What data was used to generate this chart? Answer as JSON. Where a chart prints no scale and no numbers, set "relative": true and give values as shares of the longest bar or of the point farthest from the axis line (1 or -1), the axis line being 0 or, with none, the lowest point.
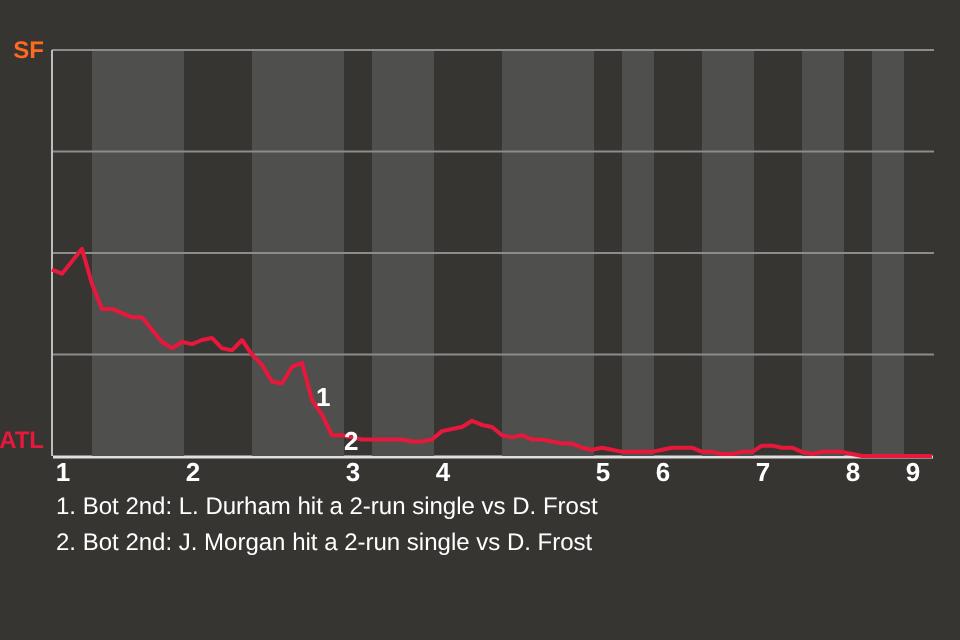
{
  "chart_data": {
    "type": "line",
    "categories": [
      null,
      "1",
      null,
      null,
      null,
      null,
      null,
      null,
      null,
      null,
      null,
      null,
      null,
      null,
      "2",
      null,
      null,
      null,
      null,
      null,
      null,
      null,
      null,
      null,
      null,
      null,
      null,
      null,
      null,
      null,
      "3",
      null,
      null,
      null,
      null,
      null,
      null,
      null,
      null,
      "4",
      null,
      null,
      null,
      null,
      null,
      null,
      null,
      null,
      null,
      null,
      null,
      null,
      null,
      null,
      null,
      "5",
      null,
      null,
      null,
      null,
      null,
      "6",
      null,
      null,
      null,
      null,
      null,
      null,
      null,
      null,
      null,
      "7",
      null,
      null,
      null,
      null,
      null,
      null,
      null,
      null,
      "8",
      null,
      null,
      null,
      null,
      null,
      "9",
      null,
      null
    ],
    "series": [
      {
        "color": "#e8183c",
        "values": [
          0.9,
          0.88,
          0.94,
          1,
          0.83,
          0.71,
          0.71,
          0.69,
          0.67,
          0.67,
          0.61,
          0.55,
          0.52,
          0.55,
          0.54,
          0.56,
          0.57,
          0.52,
          0.51,
          0.56,
          0.49,
          0.44,
          0.36,
          0.35,
          0.43,
          0.45,
          0.27,
          0.2,
          0.1,
          0.1,
          0.09,
          0.08,
          0.08,
          0.08,
          0.08,
          0.08,
          0.07,
          0.07,
          0.08,
          0.12,
          0.13,
          0.14,
          0.17,
          0.15,
          0.14,
          0.1,
          0.09,
          0.1,
          0.08,
          0.08,
          0.07,
          0.06,
          0.06,
          0.04,
          0.03,
          0.04,
          0.03,
          0.02,
          0.02,
          0.02,
          0.02,
          0.03,
          0.04,
          0.04,
          0.04,
          0.02,
          0.02,
          0.01,
          0.01,
          0.02,
          0.02,
          0.05,
          0.05,
          0.04,
          0.04,
          0.02,
          0.01,
          0.02,
          0.02,
          0.02,
          0.01,
          0,
          0,
          0,
          0,
          0,
          0,
          0,
          0
        ]
      }
    ],
    "relative": true,
    "ref_lines": [
      {
        "axis": "y",
        "value": 0.49,
        "color": "#8c8c8c"
      },
      {
        "axis": "y",
        "value": 0.98,
        "color": "#8c8c8c"
      },
      {
        "axis": "y",
        "value": 1.47,
        "color": "#8c8c8c"
      },
      {
        "axis": "y",
        "value": 1.96,
        "color": "#8c8c8c"
      }
    ],
    "annotations": [
      "SF",
      "ATL",
      "1",
      "2",
      "1. Bot 2nd: L. Durham hit a 2-run single vs D. Frost",
      "2. Bot 2nd: J. Morgan hit a 2-run single vs D. Frost"
    ]
  }
}
